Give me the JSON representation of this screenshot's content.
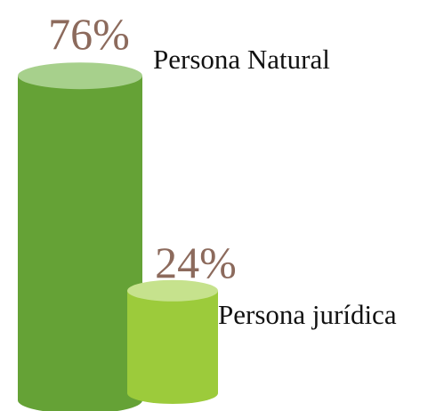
{
  "chart_data": {
    "type": "cylinder",
    "categories": [
      "Persona Natural",
      "Persona jurídica"
    ],
    "values": [
      76,
      24
    ],
    "value_labels": [
      "76%",
      "24%"
    ],
    "colors": [
      "#65a236",
      "#9ccb3b"
    ],
    "top_colors": [
      "#a7d08c",
      "#c6e28d"
    ]
  }
}
